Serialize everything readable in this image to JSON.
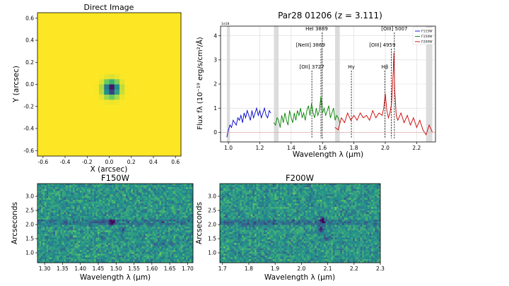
{
  "chart_data": [
    {
      "type": "heatmap",
      "title": "Direct Image",
      "xlabel": "X (arcsec)",
      "ylabel": "Y (arcsec)",
      "xlim": [
        -0.65,
        0.65
      ],
      "ylim": [
        -0.65,
        0.65
      ],
      "xticks": [
        "-0.6",
        "-0.4",
        "-0.2",
        "0.0",
        "0.2",
        "0.4",
        "0.6"
      ],
      "yticks": [
        "-0.6",
        "-0.4",
        "-0.2",
        "0.0",
        "0.2",
        "0.4",
        "0.6"
      ],
      "source_center": [
        0.02,
        -0.04
      ],
      "colormap": [
        "#fde725",
        "#5ec962",
        "#21918c",
        "#3b528b",
        "#440154"
      ]
    },
    {
      "type": "line",
      "title": "Par28 01206 (z = 3.111)",
      "xlabel": "Wavelength λ (μm)",
      "ylabel": "Flux fλ (10⁻¹⁹ erg/s/cm²/Å)",
      "scale_label": "1e18",
      "xlim": [
        0.95,
        2.32
      ],
      "ylim": [
        -0.4,
        4.4
      ],
      "xticks": [
        "1.0",
        "1.2",
        "1.4",
        "1.6",
        "1.8",
        "2.0",
        "2.2"
      ],
      "yticks": [
        "0",
        "1",
        "2",
        "3",
        "4"
      ],
      "grid": true,
      "legend_position": "top-right",
      "series": [
        {
          "name": "F115W",
          "color": "#0000cc",
          "x": [
            0.99,
            1.0,
            1.01,
            1.02,
            1.03,
            1.04,
            1.05,
            1.06,
            1.07,
            1.08,
            1.09,
            1.1,
            1.11,
            1.12,
            1.13,
            1.14,
            1.15,
            1.16,
            1.17,
            1.18,
            1.19,
            1.2,
            1.21,
            1.22,
            1.23,
            1.24,
            1.25,
            1.26,
            1.27
          ],
          "values": [
            -0.2,
            0.1,
            0.3,
            0.2,
            0.5,
            0.4,
            0.3,
            0.6,
            0.5,
            0.7,
            0.4,
            0.8,
            0.6,
            0.9,
            0.7,
            0.5,
            0.9,
            0.6,
            0.8,
            1.0,
            0.7,
            0.9,
            0.6,
            0.8,
            1.0,
            0.7,
            0.6,
            0.9,
            0.8
          ]
        },
        {
          "name": "F150W",
          "color": "#008000",
          "x": [
            1.29,
            1.3,
            1.31,
            1.32,
            1.33,
            1.34,
            1.35,
            1.36,
            1.37,
            1.38,
            1.39,
            1.4,
            1.41,
            1.42,
            1.43,
            1.44,
            1.45,
            1.46,
            1.47,
            1.48,
            1.49,
            1.5,
            1.51,
            1.52,
            1.53,
            1.54,
            1.55,
            1.56,
            1.57,
            1.58,
            1.59,
            1.6,
            1.61,
            1.62,
            1.63,
            1.64,
            1.65,
            1.66,
            1.67,
            1.68,
            1.69,
            1.7,
            1.71
          ],
          "values": [
            0.4,
            0.3,
            0.6,
            0.5,
            0.2,
            0.7,
            0.4,
            0.8,
            0.5,
            0.3,
            0.9,
            0.6,
            0.4,
            0.8,
            0.5,
            0.9,
            0.7,
            1.0,
            0.6,
            0.8,
            0.5,
            0.9,
            1.1,
            0.7,
            1.2,
            0.8,
            0.6,
            1.0,
            0.7,
            0.9,
            1.5,
            0.8,
            1.0,
            0.7,
            0.9,
            1.1,
            0.6,
            0.8,
            1.0,
            0.5,
            0.7,
            0.6,
            0.4
          ]
        },
        {
          "name": "F200W",
          "color": "#cc0000",
          "x": [
            1.68,
            1.7,
            1.72,
            1.74,
            1.76,
            1.78,
            1.8,
            1.82,
            1.84,
            1.86,
            1.88,
            1.9,
            1.92,
            1.94,
            1.96,
            1.98,
            1.99,
            2.0,
            2.01,
            2.02,
            2.03,
            2.04,
            2.05,
            2.055,
            2.06,
            2.07,
            2.08,
            2.1,
            2.12,
            2.14,
            2.16,
            2.18,
            2.2,
            2.22,
            2.24,
            2.26,
            2.28,
            2.3
          ],
          "values": [
            0.2,
            0.1,
            0.6,
            0.4,
            0.8,
            0.5,
            0.7,
            0.5,
            0.8,
            0.6,
            0.7,
            0.5,
            0.9,
            0.6,
            0.8,
            0.7,
            1.0,
            1.6,
            0.9,
            0.6,
            0.8,
            1.2,
            2.4,
            3.3,
            1.8,
            0.7,
            0.5,
            0.8,
            0.4,
            0.7,
            0.3,
            0.6,
            0.2,
            0.5,
            0.1,
            -0.1,
            0.3,
            0.0
          ]
        }
      ],
      "emission_lines": [
        {
          "label": "[OII] 3727",
          "x": 1.532
        },
        {
          "label": "[NeIII] 3869",
          "x": 1.59
        },
        {
          "label": "HeI 3889",
          "x": 1.598
        },
        {
          "label": "Hγ",
          "x": 1.784
        },
        {
          "label": "Hβ",
          "x": 1.998
        },
        {
          "label": "[OIII] 4959",
          "x": 2.038
        },
        {
          "label": "[OIII] 5007",
          "x": 2.058
        }
      ],
      "shaded_bands": [
        [
          0.99,
          1.01
        ],
        [
          1.29,
          1.32
        ],
        [
          1.68,
          1.71
        ],
        [
          2.26,
          2.3
        ]
      ]
    },
    {
      "type": "heatmap",
      "title": "F150W",
      "xlabel": "Wavelength λ (μm)",
      "ylabel": "Arcseconds",
      "xlim": [
        1.28,
        1.715
      ],
      "ylim": [
        0.65,
        3.45
      ],
      "xticks": [
        "1.30",
        "1.35",
        "1.40",
        "1.45",
        "1.50",
        "1.55",
        "1.60",
        "1.65",
        "1.70"
      ],
      "yticks": [
        "1.0",
        "1.5",
        "2.0",
        "2.5",
        "3.0"
      ],
      "trace_y": 2.1
    },
    {
      "type": "heatmap",
      "title": "F200W",
      "xlabel": "Wavelength λ (μm)",
      "ylabel": "Arcseconds",
      "xlim": [
        1.69,
        2.3
      ],
      "ylim": [
        0.65,
        3.45
      ],
      "xticks": [
        "1.7",
        "1.8",
        "1.9",
        "2.0",
        "2.1",
        "2.2",
        "2.3"
      ],
      "yticks": [
        "1.0",
        "1.5",
        "2.0",
        "2.5",
        "3.0"
      ],
      "trace_y": 2.1
    }
  ]
}
